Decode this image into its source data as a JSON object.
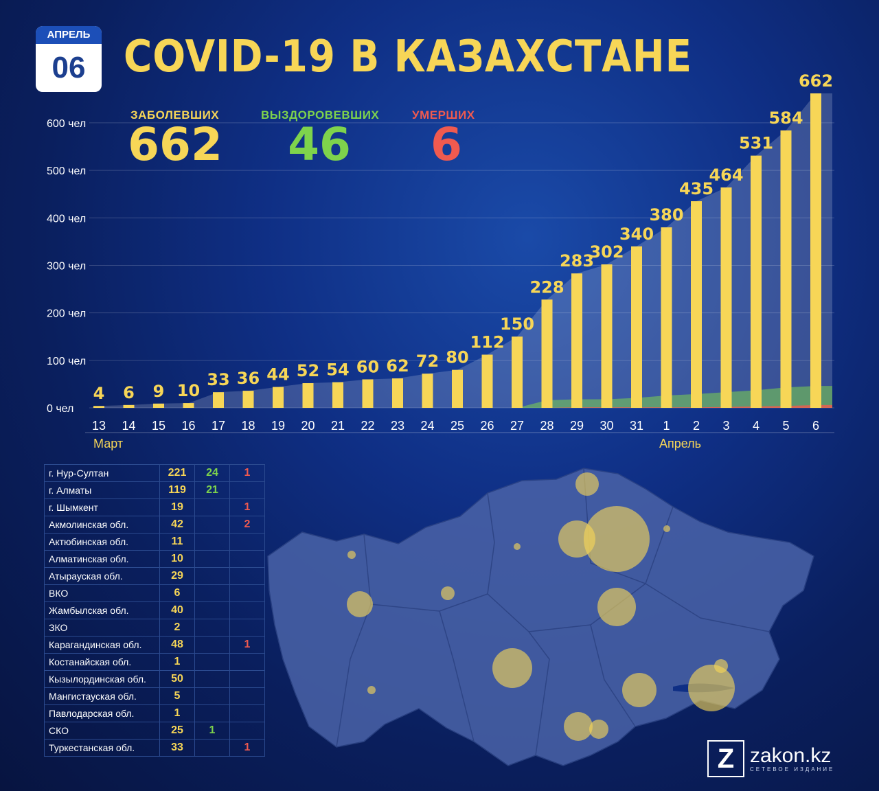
{
  "calendar": {
    "month": "АПРЕЛЬ",
    "day": "06"
  },
  "title": "COVID-19 В КАЗАХСТАНЕ",
  "stats": {
    "infected_label": "ЗАБОЛЕВШИХ",
    "infected_value": "662",
    "recovered_label": "ВЫЗДОРОВЕВШИХ",
    "recovered_value": "46",
    "deaths_label": "УМЕРШИХ",
    "deaths_value": "6"
  },
  "colors": {
    "infected": "#f7d657",
    "recovered": "#7ed34c",
    "deaths": "#f05a4f",
    "title": "#f7d657"
  },
  "chart_data": {
    "type": "bar",
    "categories": [
      "13",
      "14",
      "15",
      "16",
      "17",
      "18",
      "19",
      "20",
      "21",
      "22",
      "23",
      "24",
      "25",
      "26",
      "27",
      "28",
      "29",
      "30",
      "31",
      "1",
      "2",
      "3",
      "4",
      "5",
      "6"
    ],
    "values": [
      4,
      6,
      9,
      10,
      33,
      36,
      44,
      52,
      54,
      60,
      62,
      72,
      80,
      112,
      150,
      228,
      283,
      302,
      340,
      380,
      435,
      464,
      531,
      584,
      662
    ],
    "recovered": [
      0,
      0,
      0,
      0,
      0,
      0,
      0,
      0,
      0,
      0,
      0,
      0,
      0,
      0,
      0,
      16,
      18,
      18,
      21,
      26,
      29,
      33,
      37,
      43,
      46
    ],
    "deaths": [
      0,
      0,
      0,
      0,
      0,
      0,
      0,
      0,
      0,
      0,
      0,
      0,
      0,
      0,
      0,
      0,
      1,
      1,
      1,
      1,
      1,
      2,
      3,
      4,
      6
    ],
    "ylim": [
      0,
      700
    ],
    "yticks": [
      0,
      100,
      200,
      300,
      400,
      500,
      600
    ],
    "ytick_labels": [
      "0 чел",
      "100 чел",
      "200 чел",
      "300 чел",
      "400 чел",
      "500 чел",
      "600 чел"
    ],
    "month_labels": [
      "Март",
      "Апрель"
    ],
    "grid": true
  },
  "regions": [
    {
      "name": "г. Нур-Султан",
      "cases": "221",
      "recovered": "24",
      "deaths": "1"
    },
    {
      "name": "г. Алматы",
      "cases": "119",
      "recovered": "21",
      "deaths": ""
    },
    {
      "name": "г. Шымкент",
      "cases": "19",
      "recovered": "",
      "deaths": "1"
    },
    {
      "name": "Акмолинская обл.",
      "cases": "42",
      "recovered": "",
      "deaths": "2"
    },
    {
      "name": "Актюбинская обл.",
      "cases": "11",
      "recovered": "",
      "deaths": ""
    },
    {
      "name": "Алматинская обл.",
      "cases": "10",
      "recovered": "",
      "deaths": ""
    },
    {
      "name": "Атырауская обл.",
      "cases": "29",
      "recovered": "",
      "deaths": ""
    },
    {
      "name": "ВКО",
      "cases": "6",
      "recovered": "",
      "deaths": ""
    },
    {
      "name": "Жамбылская обл.",
      "cases": "40",
      "recovered": "",
      "deaths": ""
    },
    {
      "name": "ЗКО",
      "cases": "2",
      "recovered": "",
      "deaths": ""
    },
    {
      "name": "Карагандинская обл.",
      "cases": "48",
      "recovered": "",
      "deaths": "1"
    },
    {
      "name": "Костанайская обл.",
      "cases": "1",
      "recovered": "",
      "deaths": ""
    },
    {
      "name": "Кызылординская обл.",
      "cases": "50",
      "recovered": "",
      "deaths": ""
    },
    {
      "name": "Мангистауская обл.",
      "cases": "5",
      "recovered": "",
      "deaths": ""
    },
    {
      "name": "Павлодарская обл.",
      "cases": "1",
      "recovered": "",
      "deaths": ""
    },
    {
      "name": "СКО",
      "cases": "25",
      "recovered": "1",
      "deaths": ""
    },
    {
      "name": "Туркестанская обл.",
      "cases": "33",
      "recovered": "",
      "deaths": "1"
    }
  ],
  "logo": {
    "brand": "zakon.kz",
    "tagline": "СЕТЕВОЕ ИЗДАНИЕ",
    "mark": "Z"
  }
}
